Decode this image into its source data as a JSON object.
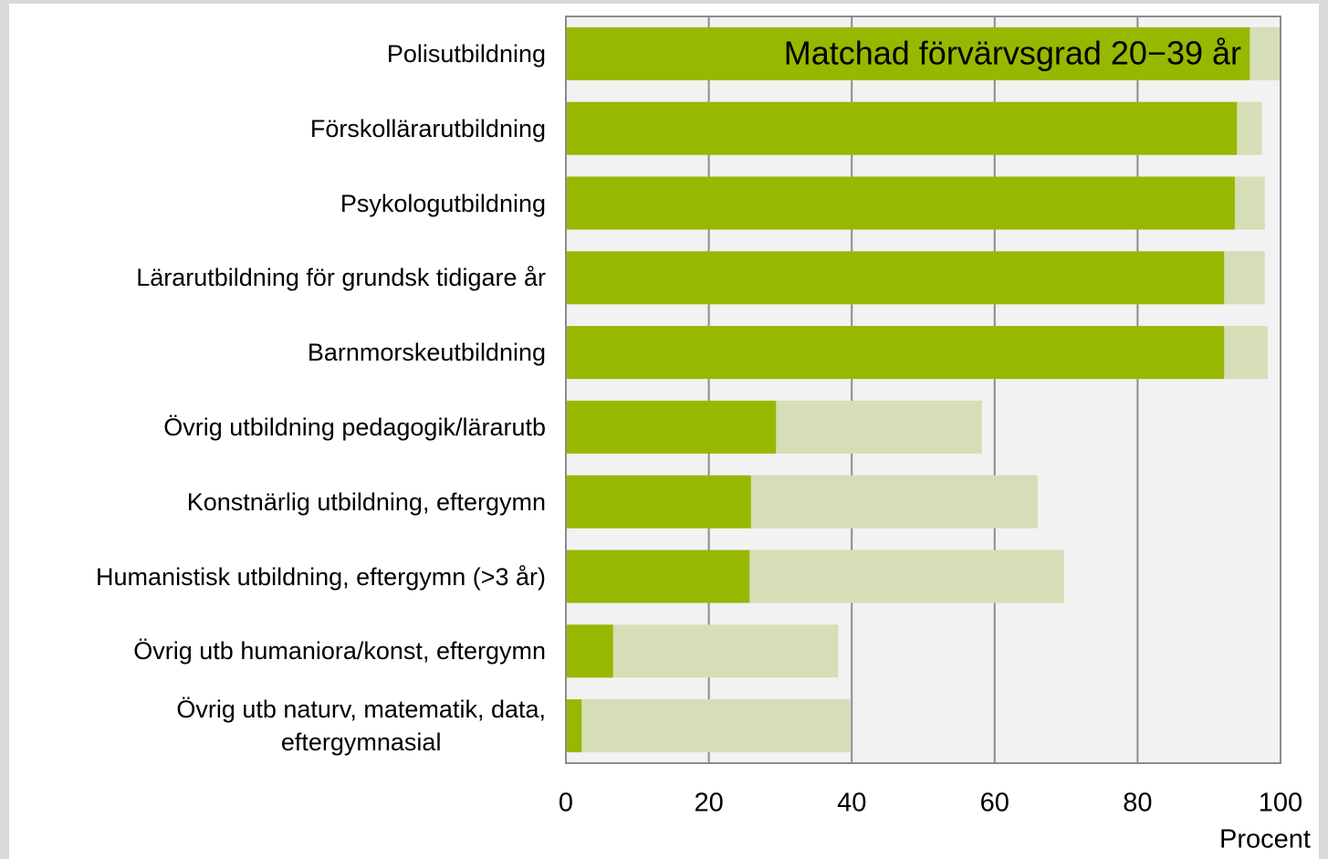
{
  "chart_data": {
    "type": "bar",
    "orientation": "horizontal",
    "overlay": true,
    "categories": [
      "Polisutbildning",
      "Förskollärarutbildning",
      "Psykologutbildning",
      "Lärarutbildning för grundsk tidigare år",
      "Barnmorskeutbildning",
      "Övrig utbildning pedagogik/lärarutb",
      "Konstnärlig utbildning, eftergymn",
      "Humanistisk utbildning, eftergymn (>3 år)",
      "Övrig utb humaniora/konst, eftergymn",
      "Övrig utb naturv, matematik, data,\neftergymnasial"
    ],
    "series": [
      {
        "color": "#d5deb6",
        "values": [
          100,
          97.4,
          97.8,
          97.8,
          98.2,
          58.2,
          66.0,
          69.7,
          38.1,
          39.8
        ]
      },
      {
        "name": "Matchad förvärvsgrad 20−39 år",
        "color": "#97b800",
        "values": [
          95.7,
          93.9,
          93.6,
          92.1,
          92.1,
          29.4,
          25.9,
          25.7,
          6.6,
          2.2
        ]
      }
    ],
    "xlabel": "Procent",
    "xlim": [
      0,
      100
    ],
    "xticks": [
      0,
      20,
      40,
      60,
      80,
      100
    ],
    "grid": true
  }
}
